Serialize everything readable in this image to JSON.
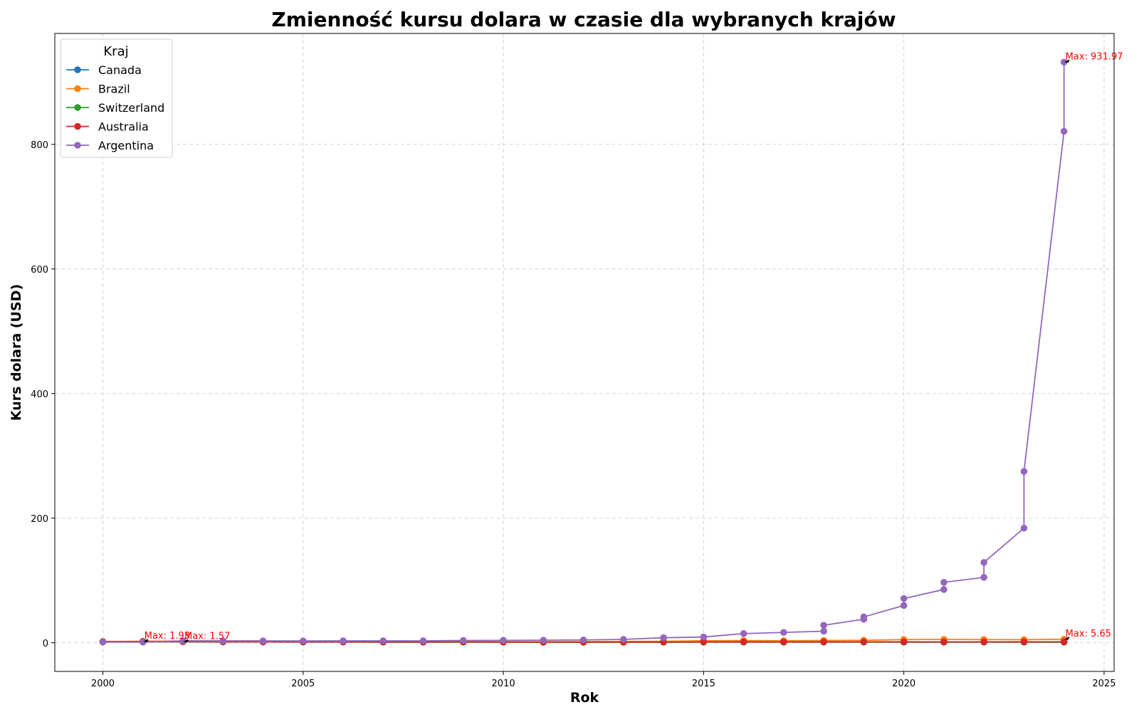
{
  "chart_data": {
    "type": "line",
    "title": "Zmienność kursu dolara w czasie dla wybranych krajów",
    "xlabel": "Rok",
    "ylabel": "Kurs dolara (USD)",
    "xlim": [
      1998.8,
      2025.25
    ],
    "ylim": [
      -46,
      978
    ],
    "xticks": [
      2000,
      2005,
      2010,
      2015,
      2020,
      2025
    ],
    "yticks": [
      0,
      200,
      400,
      600,
      800
    ],
    "grid": true,
    "legend": {
      "title": "Kraj",
      "placement": "top-left"
    },
    "series": [
      {
        "name": "Canada",
        "color": "#1f77b4",
        "points": [
          [
            2000,
            1.49
          ],
          [
            2001,
            1.55
          ],
          [
            2002,
            1.57
          ],
          [
            2003,
            1.4
          ],
          [
            2004,
            1.3
          ],
          [
            2005,
            1.21
          ],
          [
            2006,
            1.13
          ],
          [
            2007,
            1.07
          ],
          [
            2008,
            1.07
          ],
          [
            2009,
            1.14
          ],
          [
            2010,
            1.03
          ],
          [
            2011,
            0.99
          ],
          [
            2012,
            1.0
          ],
          [
            2013,
            1.03
          ],
          [
            2014,
            1.1
          ],
          [
            2015,
            1.28
          ],
          [
            2016,
            1.33
          ],
          [
            2017,
            1.3
          ],
          [
            2018,
            1.3
          ],
          [
            2019,
            1.33
          ],
          [
            2020,
            1.34
          ],
          [
            2021,
            1.25
          ],
          [
            2022,
            1.3
          ],
          [
            2023,
            1.35
          ],
          [
            2024,
            1.36
          ]
        ]
      },
      {
        "name": "Brazil",
        "color": "#ff7f0e",
        "points": [
          [
            2000,
            1.83
          ],
          [
            2001,
            2.35
          ],
          [
            2002,
            2.92
          ],
          [
            2003,
            3.08
          ],
          [
            2004,
            2.93
          ],
          [
            2005,
            2.43
          ],
          [
            2006,
            2.18
          ],
          [
            2007,
            1.95
          ],
          [
            2008,
            1.83
          ],
          [
            2009,
            2.0
          ],
          [
            2010,
            1.76
          ],
          [
            2011,
            1.67
          ],
          [
            2012,
            1.95
          ],
          [
            2013,
            2.16
          ],
          [
            2014,
            2.35
          ],
          [
            2015,
            3.33
          ],
          [
            2016,
            3.49
          ],
          [
            2017,
            3.19
          ],
          [
            2018,
            3.65
          ],
          [
            2019,
            3.94
          ],
          [
            2020,
            5.16
          ],
          [
            2021,
            5.4
          ],
          [
            2022,
            5.16
          ],
          [
            2023,
            4.99
          ],
          [
            2024,
            5.65
          ]
        ]
      },
      {
        "name": "Switzerland",
        "color": "#2ca02c",
        "points": [
          [
            2000,
            1.69
          ],
          [
            2001,
            1.69
          ],
          [
            2002,
            1.56
          ],
          [
            2003,
            1.35
          ],
          [
            2004,
            1.24
          ],
          [
            2005,
            1.25
          ],
          [
            2006,
            1.25
          ],
          [
            2007,
            1.2
          ],
          [
            2008,
            1.08
          ],
          [
            2009,
            1.09
          ],
          [
            2010,
            1.04
          ],
          [
            2011,
            0.89
          ],
          [
            2012,
            0.94
          ],
          [
            2013,
            0.93
          ],
          [
            2014,
            0.92
          ],
          [
            2015,
            0.96
          ],
          [
            2016,
            0.99
          ],
          [
            2017,
            0.98
          ],
          [
            2018,
            0.98
          ],
          [
            2019,
            0.99
          ],
          [
            2020,
            0.94
          ],
          [
            2021,
            0.91
          ],
          [
            2022,
            0.96
          ],
          [
            2023,
            0.9
          ],
          [
            2024,
            0.88
          ]
        ]
      },
      {
        "name": "Australia",
        "color": "#d62728",
        "points": [
          [
            2000,
            1.72
          ],
          [
            2001,
            1.93
          ],
          [
            2002,
            1.84
          ],
          [
            2003,
            1.54
          ],
          [
            2004,
            1.36
          ],
          [
            2005,
            1.31
          ],
          [
            2006,
            1.33
          ],
          [
            2007,
            1.2
          ],
          [
            2008,
            1.19
          ],
          [
            2009,
            1.28
          ],
          [
            2010,
            1.09
          ],
          [
            2011,
            0.97
          ],
          [
            2012,
            0.97
          ],
          [
            2013,
            1.04
          ],
          [
            2014,
            1.11
          ],
          [
            2015,
            1.33
          ],
          [
            2016,
            1.35
          ],
          [
            2017,
            1.3
          ],
          [
            2018,
            1.34
          ],
          [
            2019,
            1.44
          ],
          [
            2020,
            1.45
          ],
          [
            2021,
            1.33
          ],
          [
            2022,
            1.44
          ],
          [
            2023,
            1.51
          ],
          [
            2024,
            1.52
          ]
        ]
      },
      {
        "name": "Argentina",
        "color": "#9467bd",
        "points": [
          [
            2000,
            1.0
          ],
          [
            2001,
            1.0
          ],
          [
            2002,
            3.06
          ],
          [
            2003,
            2.9
          ],
          [
            2004,
            2.92
          ],
          [
            2005,
            2.9
          ],
          [
            2006,
            3.05
          ],
          [
            2007,
            3.1
          ],
          [
            2008,
            3.16
          ],
          [
            2009,
            3.71
          ],
          [
            2010,
            3.9
          ],
          [
            2011,
            4.11
          ],
          [
            2012,
            4.54
          ],
          [
            2013,
            5.46
          ],
          [
            2014,
            8.08
          ],
          [
            2015,
            9.23
          ],
          [
            2016,
            14.76
          ],
          [
            2017,
            16.56
          ],
          [
            2018,
            18.6
          ],
          [
            2018,
            28.1
          ],
          [
            2019,
            37.7
          ],
          [
            2019,
            41.5
          ],
          [
            2020,
            59.8
          ],
          [
            2020,
            71.0
          ],
          [
            2021,
            85.5
          ],
          [
            2021,
            97.0
          ],
          [
            2022,
            105.0
          ],
          [
            2022,
            129.0
          ],
          [
            2023,
            184.0
          ],
          [
            2023,
            275.0
          ],
          [
            2024,
            821.0
          ],
          [
            2024,
            931.97
          ]
        ]
      }
    ],
    "annotations": [
      {
        "text": "Max: 1.93",
        "x": 2001,
        "y": 1.93,
        "color": "#ff0000"
      },
      {
        "text": "Max: 1.57",
        "x": 2002,
        "y": 1.57,
        "color": "#ff0000"
      },
      {
        "text": "Max: 931.97",
        "x": 2024,
        "y": 931.97,
        "color": "#ff0000"
      },
      {
        "text": "Max: 5.65",
        "x": 2024,
        "y": 5.65,
        "color": "#ff0000"
      }
    ]
  }
}
